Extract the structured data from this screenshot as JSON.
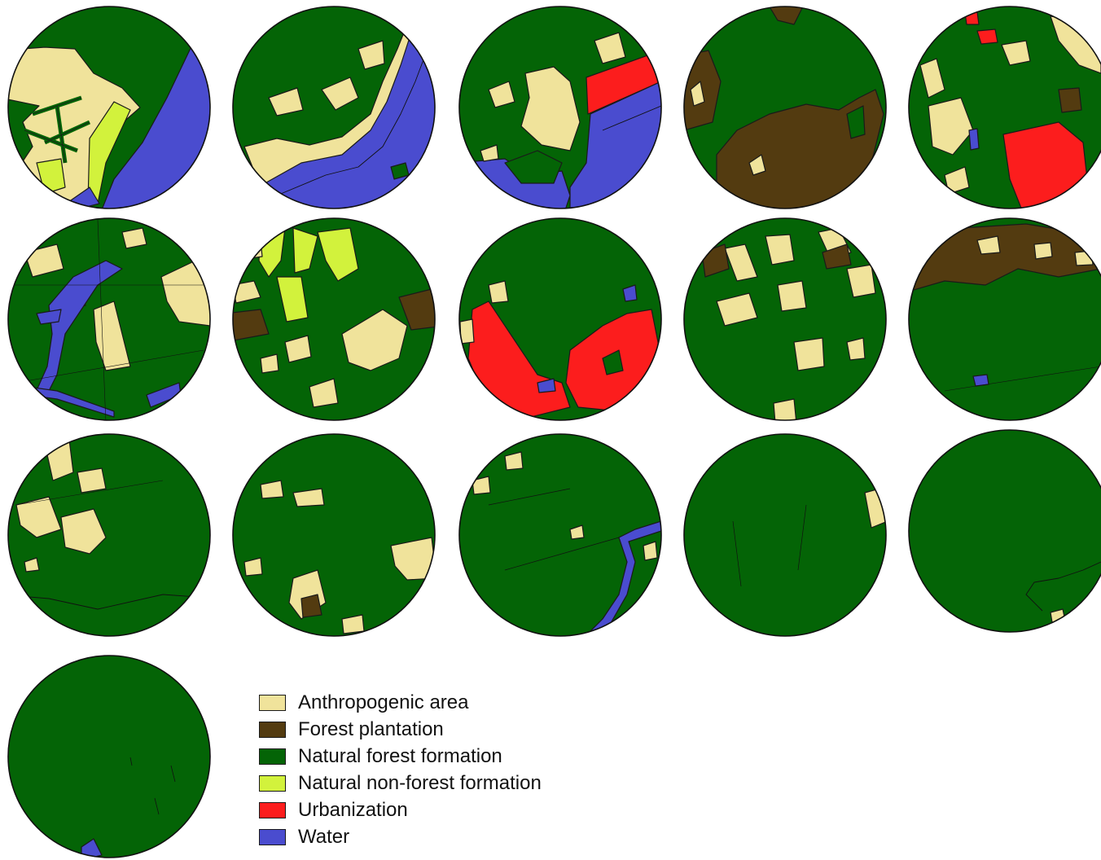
{
  "figure": {
    "panel_count": 16,
    "panel_layout": "16 circular land-cover maps in a grid of 5 columns; the last panel sits alone in a fourth row beside the legend",
    "panels": [
      {
        "dominant": "Natural forest formation",
        "features": [
          "Anthropogenic area",
          "Natural non-forest formation",
          "Water"
        ]
      },
      {
        "dominant": "Natural forest formation",
        "features": [
          "Anthropogenic area",
          "Water"
        ]
      },
      {
        "dominant": "Natural forest formation",
        "features": [
          "Anthropogenic area",
          "Urbanization",
          "Water"
        ]
      },
      {
        "dominant": "Natural forest formation",
        "features": [
          "Forest plantation",
          "Anthropogenic area"
        ]
      },
      {
        "dominant": "Natural forest formation",
        "features": [
          "Anthropogenic area",
          "Urbanization",
          "Water",
          "Forest plantation"
        ]
      },
      {
        "dominant": "Natural forest formation",
        "features": [
          "Anthropogenic area",
          "Water"
        ]
      },
      {
        "dominant": "Natural forest formation",
        "features": [
          "Anthropogenic area",
          "Natural non-forest formation",
          "Forest plantation"
        ]
      },
      {
        "dominant": "Natural forest formation",
        "features": [
          "Urbanization",
          "Anthropogenic area",
          "Water"
        ]
      },
      {
        "dominant": "Natural forest formation",
        "features": [
          "Anthropogenic area",
          "Forest plantation"
        ]
      },
      {
        "dominant": "Natural forest formation",
        "features": [
          "Forest plantation",
          "Anthropogenic area",
          "Water"
        ]
      },
      {
        "dominant": "Natural forest formation",
        "features": [
          "Anthropogenic area"
        ]
      },
      {
        "dominant": "Natural forest formation",
        "features": [
          "Anthropogenic area",
          "Forest plantation"
        ]
      },
      {
        "dominant": "Natural forest formation",
        "features": [
          "Anthropogenic area",
          "Water"
        ]
      },
      {
        "dominant": "Natural forest formation",
        "features": [
          "Anthropogenic area"
        ]
      },
      {
        "dominant": "Natural forest formation",
        "features": [
          "Anthropogenic area"
        ]
      },
      {
        "dominant": "Natural forest formation",
        "features": [
          "Water"
        ]
      }
    ]
  },
  "legend": {
    "items": [
      {
        "label": "Anthropogenic area",
        "color": "#f0e39b"
      },
      {
        "label": "Forest plantation",
        "color": "#533b10"
      },
      {
        "label": "Natural forest formation",
        "color": "#046406"
      },
      {
        "label": "Natural non-forest formation",
        "color": "#d2f23c"
      },
      {
        "label": "Urbanization",
        "color": "#fc1d1d"
      },
      {
        "label": "Water",
        "color": "#4a4ccf"
      }
    ]
  }
}
